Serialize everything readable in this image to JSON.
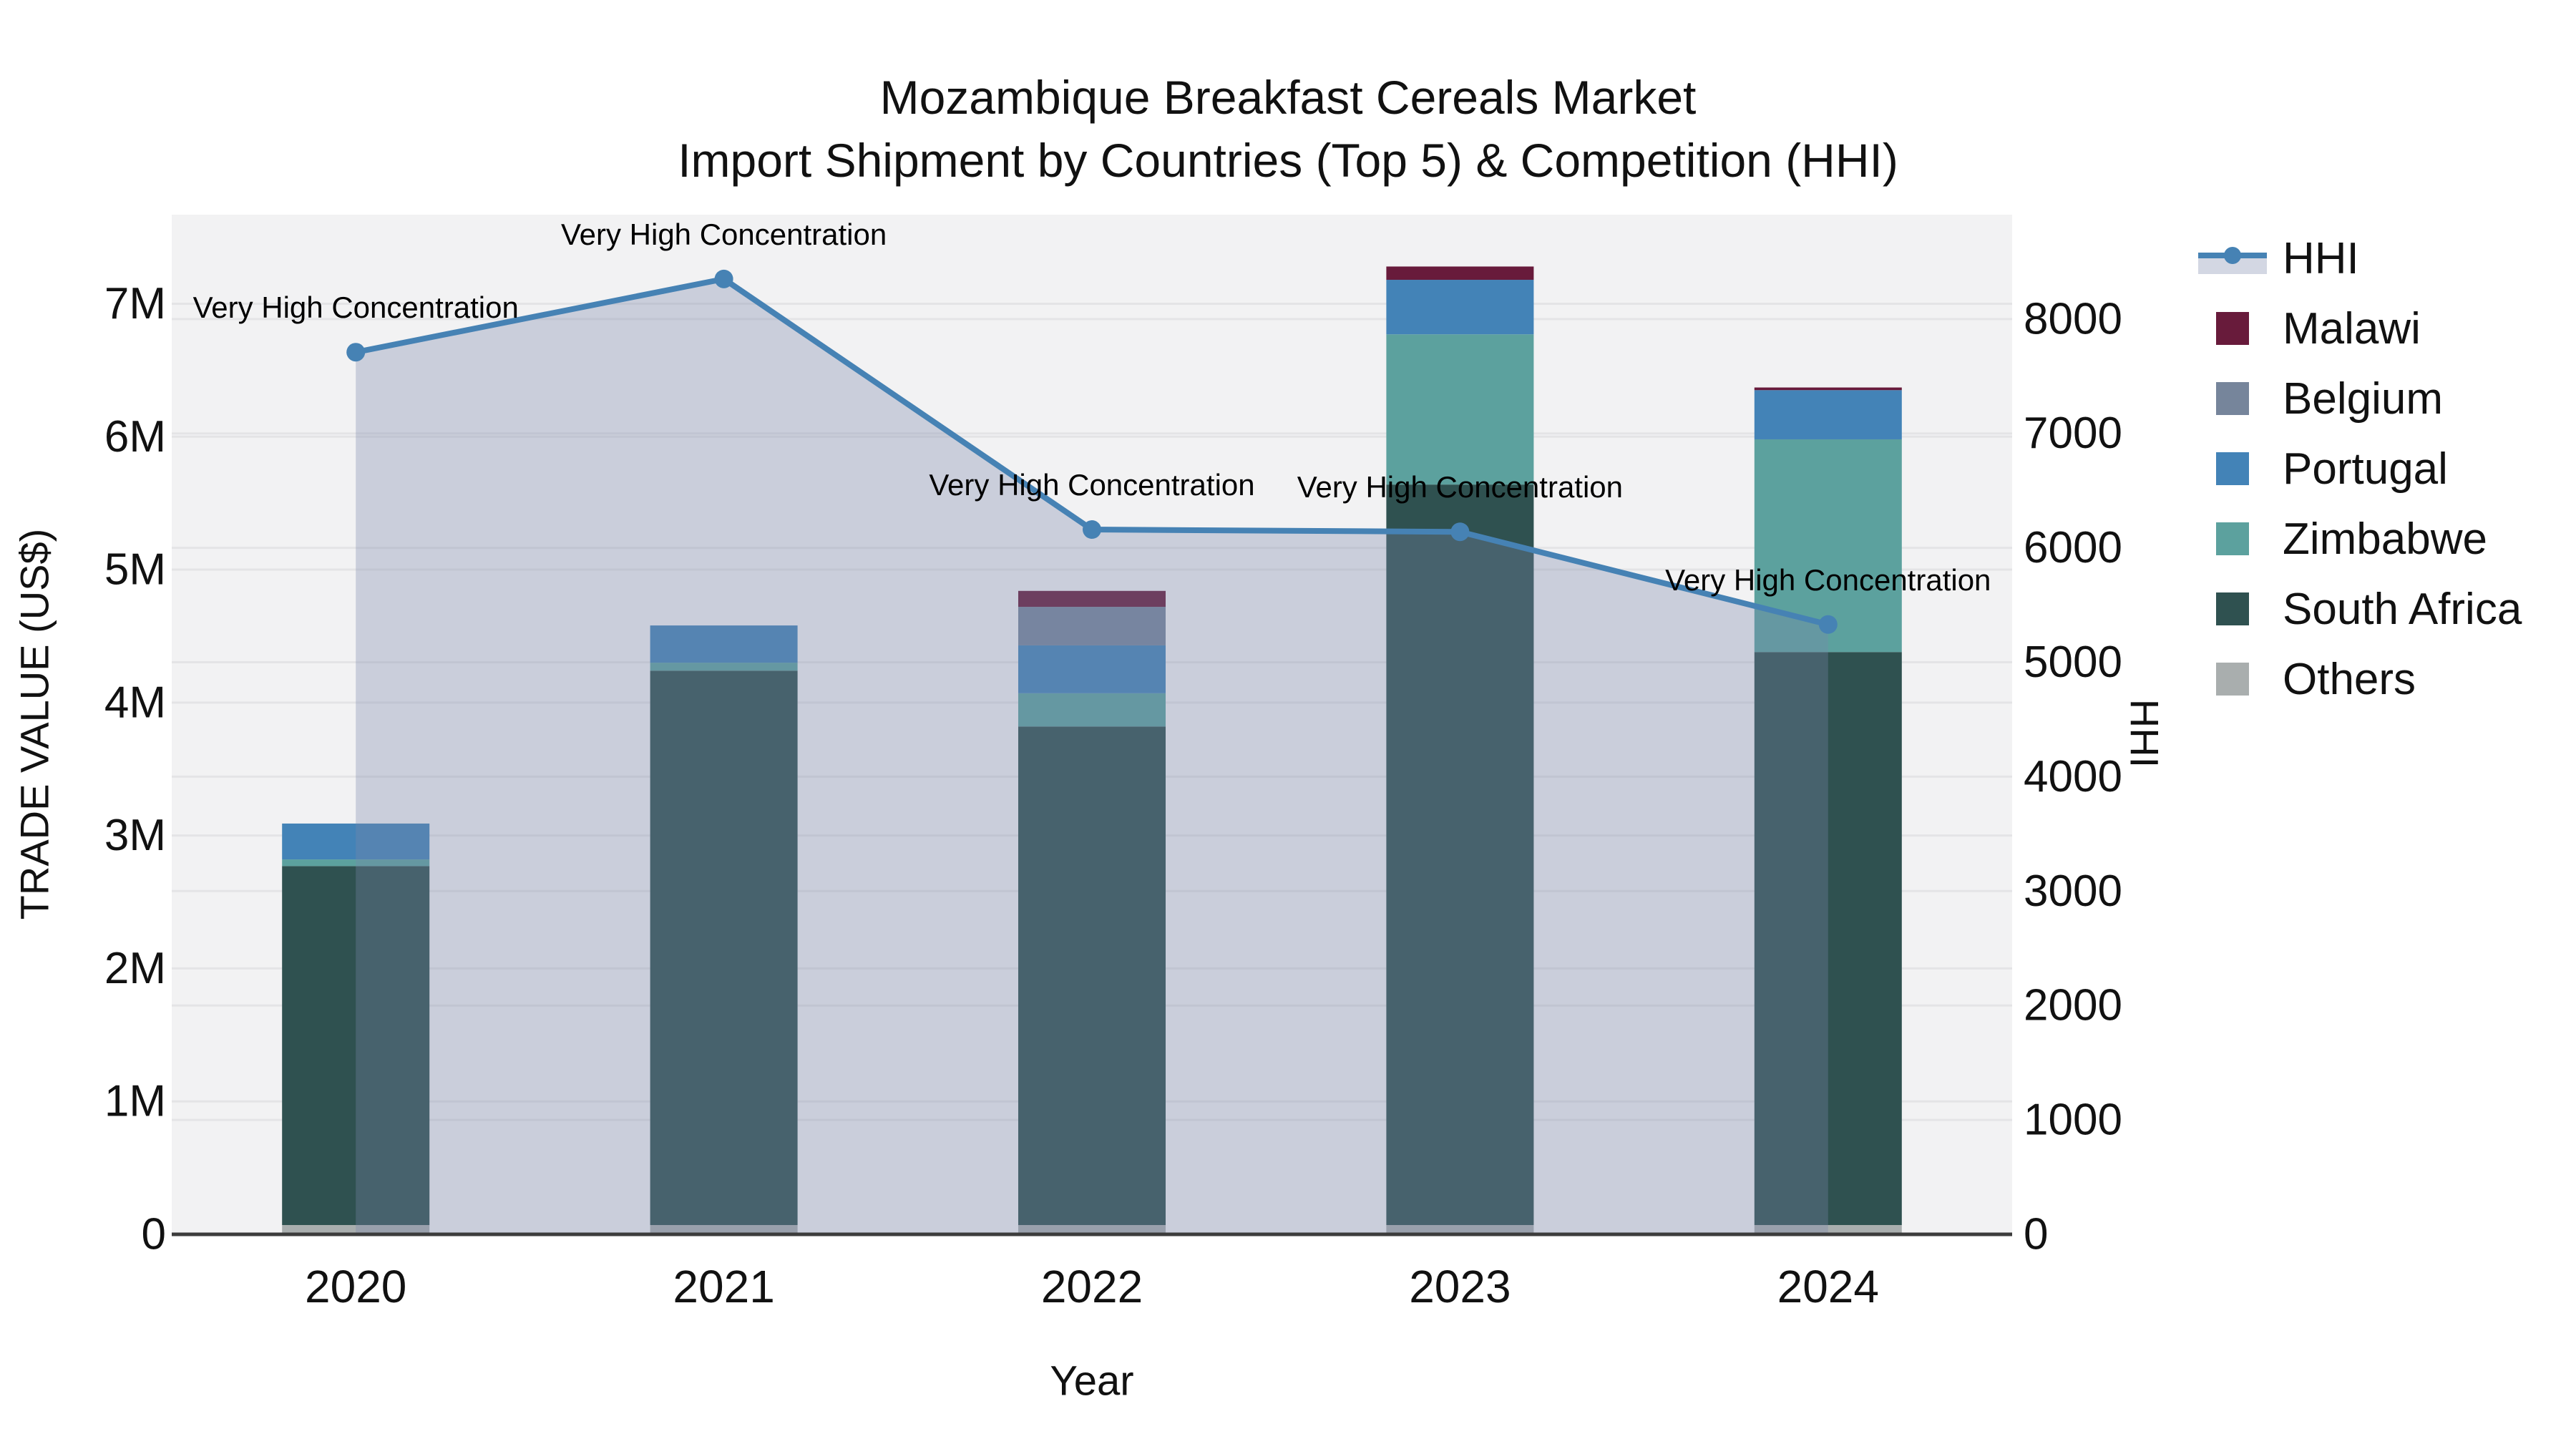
{
  "title": {
    "line1": "Mozambique Breakfast Cereals Market",
    "line2": "Import Shipment by Countries (Top 5) & Competition (HHI)"
  },
  "axes": {
    "x_title": "Year",
    "y_left_title": "TRADE VALUE (US$)",
    "y_right_title": "HHI",
    "y_left_ticks": [
      {
        "value": 0,
        "label": "0"
      },
      {
        "value": 1,
        "label": "1M"
      },
      {
        "value": 2,
        "label": "2M"
      },
      {
        "value": 3,
        "label": "3M"
      },
      {
        "value": 4,
        "label": "4M"
      },
      {
        "value": 5,
        "label": "5M"
      },
      {
        "value": 6,
        "label": "6M"
      },
      {
        "value": 7,
        "label": "7M"
      }
    ],
    "y_right_ticks": [
      {
        "value": 0,
        "label": "0"
      },
      {
        "value": 1000,
        "label": "1000"
      },
      {
        "value": 2000,
        "label": "2000"
      },
      {
        "value": 3000,
        "label": "3000"
      },
      {
        "value": 4000,
        "label": "4000"
      },
      {
        "value": 5000,
        "label": "5000"
      },
      {
        "value": 6000,
        "label": "6000"
      },
      {
        "value": 7000,
        "label": "7000"
      },
      {
        "value": 8000,
        "label": "8000"
      }
    ]
  },
  "legend": {
    "items": [
      {
        "label": "HHI",
        "type": "line",
        "color": "#4682b4"
      },
      {
        "label": "Malawi",
        "type": "swatch",
        "color": "#681b3b"
      },
      {
        "label": "Belgium",
        "type": "swatch",
        "color": "#76859b"
      },
      {
        "label": "Portugal",
        "type": "swatch",
        "color": "#4383b7"
      },
      {
        "label": "Zimbabwe",
        "type": "swatch",
        "color": "#5ca19e"
      },
      {
        "label": "South Africa",
        "type": "swatch",
        "color": "#2f5150"
      },
      {
        "label": "Others",
        "type": "swatch",
        "color": "#a9aeae"
      }
    ]
  },
  "chart_data": {
    "type": "bar",
    "subtype": "stacked-bars-with-overlaid-line",
    "title": "Mozambique Breakfast Cereals Market — Import Shipment by Countries (Top 5) & Competition (HHI)",
    "categories": [
      "2020",
      "2021",
      "2022",
      "2023",
      "2024"
    ],
    "bar_value_unit": "US$ million (left axis, TRADE VALUE US$)",
    "series": [
      {
        "name": "Others",
        "color": "#a9aeae",
        "values": [
          0.07,
          0.07,
          0.07,
          0.07,
          0.07
        ]
      },
      {
        "name": "South Africa",
        "color": "#2f5150",
        "values": [
          2.7,
          4.17,
          3.75,
          5.57,
          4.31
        ]
      },
      {
        "name": "Zimbabwe",
        "color": "#5ca19e",
        "values": [
          0.05,
          0.06,
          0.25,
          1.13,
          1.6
        ]
      },
      {
        "name": "Portugal",
        "color": "#4383b7",
        "values": [
          0.27,
          0.28,
          0.36,
          0.41,
          0.37
        ]
      },
      {
        "name": "Belgium",
        "color": "#76859b",
        "values": [
          0.0,
          0.0,
          0.29,
          0.0,
          0.0
        ]
      },
      {
        "name": "Malawi",
        "color": "#681b3b",
        "values": [
          0.0,
          0.0,
          0.12,
          0.1,
          0.02
        ]
      }
    ],
    "bar_totals": [
      3.09,
      4.58,
      4.84,
      7.28,
      6.37
    ],
    "line_series": {
      "name": "HHI",
      "axis": "right",
      "color": "#4682b4",
      "area_fill": "rgba(120,135,170,0.33)",
      "values": [
        7710,
        8350,
        6160,
        6140,
        5330
      ],
      "point_annotations": [
        "Very High Concentration",
        "Very High Concentration",
        "Very High Concentration",
        "Very High Concentration",
        "Very High Concentration"
      ]
    },
    "xlabel": "Year",
    "ylabel_left": "TRADE VALUE (US$)",
    "ylabel_right": "HHI",
    "y_left_range": [
      0,
      7.67
    ],
    "y_right_range": [
      0,
      8912
    ],
    "grid": true,
    "legend_position": "right",
    "plot_bg": "#f2f2f3",
    "grid_color": "#e4e4e6",
    "axis_line_color": "#3c3c3c",
    "text_color": "#111111"
  }
}
